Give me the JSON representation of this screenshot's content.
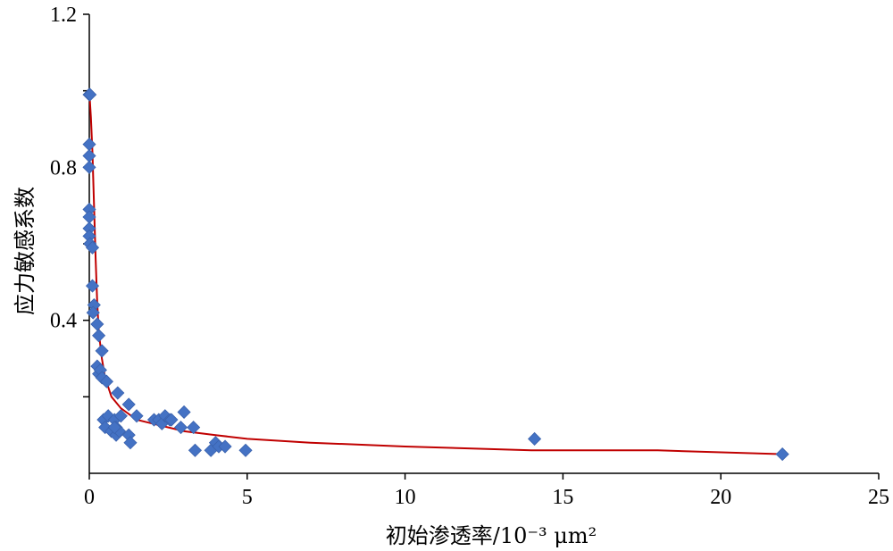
{
  "chart_data": {
    "type": "scatter",
    "xlabel": "初始渗透率/10⁻³ μm²",
    "ylabel": "应力敏感系数",
    "xlim": [
      0,
      25
    ],
    "ylim": [
      0,
      1.2
    ],
    "x_ticks": [
      0,
      5,
      10,
      15,
      20,
      25
    ],
    "x_tick_labels": [
      "0",
      "5",
      "10",
      "15",
      "20",
      "25"
    ],
    "y_ticks": [
      0.4,
      0.8,
      1.2
    ],
    "y_tick_labels": [
      "0.4",
      "0.8",
      "1.2"
    ],
    "grid": false,
    "legend": "none",
    "colors": {
      "points": "#4472C4",
      "trend": "#C00000",
      "axis": "#000000"
    },
    "series": [
      {
        "kind": "points",
        "marker": "diamond",
        "points": [
          [
            0.0,
            0.99
          ],
          [
            0.02,
            0.99
          ],
          [
            0.0,
            0.86
          ],
          [
            0.0,
            0.83
          ],
          [
            0.0,
            0.8
          ],
          [
            0.0,
            0.69
          ],
          [
            0.0,
            0.67
          ],
          [
            0.0,
            0.64
          ],
          [
            0.0,
            0.62
          ],
          [
            0.02,
            0.6
          ],
          [
            0.1,
            0.59
          ],
          [
            0.1,
            0.49
          ],
          [
            0.15,
            0.44
          ],
          [
            0.12,
            0.42
          ],
          [
            0.25,
            0.39
          ],
          [
            0.3,
            0.36
          ],
          [
            0.4,
            0.32
          ],
          [
            0.25,
            0.28
          ],
          [
            0.3,
            0.26
          ],
          [
            0.35,
            0.27
          ],
          [
            0.4,
            0.25
          ],
          [
            0.55,
            0.24
          ],
          [
            0.9,
            0.21
          ],
          [
            1.25,
            0.18
          ],
          [
            0.45,
            0.14
          ],
          [
            0.5,
            0.12
          ],
          [
            0.6,
            0.15
          ],
          [
            0.8,
            0.14
          ],
          [
            0.85,
            0.12
          ],
          [
            0.7,
            0.11
          ],
          [
            0.85,
            0.1
          ],
          [
            0.95,
            0.11
          ],
          [
            0.8,
            0.12
          ],
          [
            1.0,
            0.15
          ],
          [
            1.25,
            0.1
          ],
          [
            1.3,
            0.08
          ],
          [
            1.5,
            0.15
          ],
          [
            2.05,
            0.14
          ],
          [
            2.2,
            0.14
          ],
          [
            2.3,
            0.13
          ],
          [
            2.4,
            0.15
          ],
          [
            2.55,
            0.14
          ],
          [
            2.6,
            0.14
          ],
          [
            2.9,
            0.12
          ],
          [
            3.0,
            0.16
          ],
          [
            3.3,
            0.12
          ],
          [
            3.35,
            0.06
          ],
          [
            3.85,
            0.06
          ],
          [
            4.0,
            0.08
          ],
          [
            4.1,
            0.07
          ],
          [
            4.3,
            0.07
          ],
          [
            4.95,
            0.06
          ],
          [
            14.1,
            0.09
          ],
          [
            21.95,
            0.05
          ]
        ]
      },
      {
        "kind": "trendline",
        "points": [
          [
            0.0,
            1.0
          ],
          [
            0.05,
            0.93
          ],
          [
            0.1,
            0.84
          ],
          [
            0.15,
            0.7
          ],
          [
            0.2,
            0.56
          ],
          [
            0.25,
            0.45
          ],
          [
            0.3,
            0.37
          ],
          [
            0.4,
            0.3
          ],
          [
            0.5,
            0.25
          ],
          [
            0.7,
            0.2
          ],
          [
            1.0,
            0.17
          ],
          [
            1.5,
            0.14
          ],
          [
            2.0,
            0.13
          ],
          [
            3.0,
            0.11
          ],
          [
            4.0,
            0.1
          ],
          [
            5.0,
            0.09
          ],
          [
            7.0,
            0.08
          ],
          [
            10.0,
            0.07
          ],
          [
            14.0,
            0.06
          ],
          [
            18.0,
            0.06
          ],
          [
            22.0,
            0.05
          ]
        ]
      }
    ]
  }
}
